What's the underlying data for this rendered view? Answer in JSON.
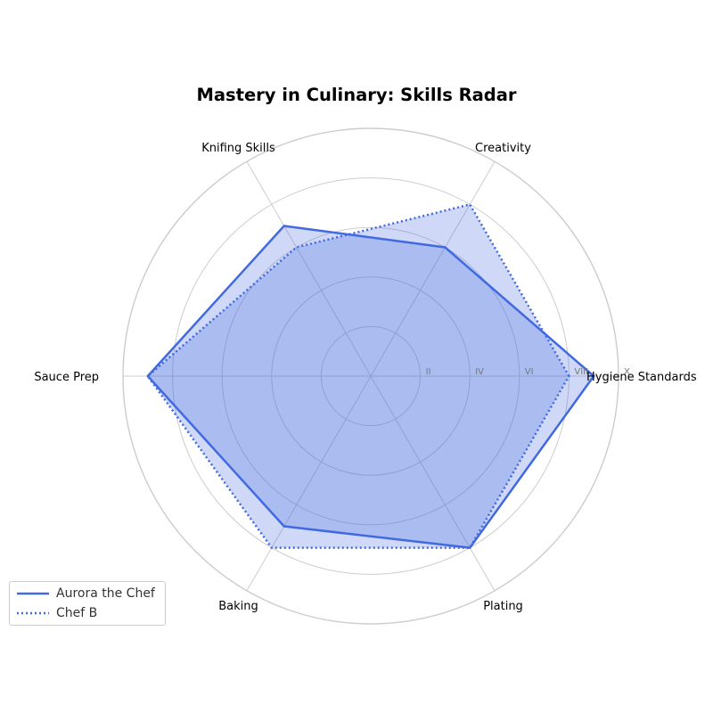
{
  "chart_data": {
    "type": "radar",
    "title": "Mastery in Culinary: Skills Radar",
    "axes": [
      "Hygiene Standards",
      "Creativity",
      "Plating",
      "Baking",
      "Sauce Prep",
      "Knifing Skills"
    ],
    "axis_order_display": [
      "Hygiene Standards",
      "Creativity",
      "Knifing Skills",
      "Sauce Prep",
      "Baking",
      "Plating"
    ],
    "radial_range": [
      0,
      10
    ],
    "radial_ticks": [
      2,
      4,
      6,
      8,
      10
    ],
    "radial_tick_labels": [
      "II",
      "IV",
      "VI",
      "VIII",
      "X"
    ],
    "series": [
      {
        "name": "Aurora the Chef",
        "style": "solid",
        "values": {
          "Hygiene Standards": 9,
          "Creativity": 6,
          "Knifing Skills": 7,
          "Sauce Prep": 9,
          "Baking": 7,
          "Plating": 8
        }
      },
      {
        "name": "Chef B",
        "style": "dotted",
        "values": {
          "Hygiene Standards": 8,
          "Creativity": 8,
          "Knifing Skills": 6,
          "Sauce Prep": 9,
          "Baking": 8,
          "Plating": 8
        }
      }
    ],
    "legend_position": "bottom-left",
    "grid": true
  },
  "colors": {
    "line": "#4169e1",
    "fill": "#4169e1",
    "grid": "#cccccc"
  }
}
